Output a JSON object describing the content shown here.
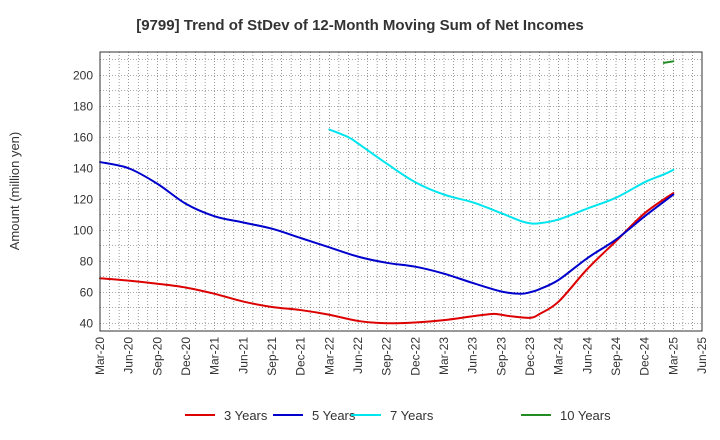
{
  "chart_data": {
    "type": "line",
    "title": "[9799]  Trend of StDev of 12-Month Moving Sum of Net Incomes",
    "ylabel": "Amount (million yen)",
    "xlabel": "",
    "ylim": [
      35,
      215
    ],
    "yticks": [
      40,
      60,
      80,
      100,
      120,
      140,
      160,
      180,
      200
    ],
    "x_ticks": [
      "Mar-20",
      "Jun-20",
      "Sep-20",
      "Dec-20",
      "Mar-21",
      "Jun-21",
      "Sep-21",
      "Dec-21",
      "Mar-22",
      "Jun-22",
      "Sep-22",
      "Dec-22",
      "Mar-23",
      "Jun-23",
      "Sep-23",
      "Dec-23",
      "Mar-24",
      "Jun-24",
      "Sep-24",
      "Dec-24",
      "Mar-25",
      "Jun-25"
    ],
    "grid": true,
    "legend_position": "bottom",
    "series": [
      {
        "name": "3 Years",
        "color": "#dd0000",
        "points": [
          [
            "Mar-20",
            69
          ],
          [
            "Jun-20",
            67.5
          ],
          [
            "Sep-20",
            65.5
          ],
          [
            "Dec-20",
            63
          ],
          [
            "Mar-21",
            59
          ],
          [
            "Jun-21",
            54
          ],
          [
            "Sep-21",
            50.5
          ],
          [
            "Dec-21",
            48.5
          ],
          [
            "Mar-22",
            45.5
          ],
          [
            "Jun-22",
            41.5
          ],
          [
            "Sep-22",
            40
          ],
          [
            "Dec-22",
            40.5
          ],
          [
            "Mar-23",
            42
          ],
          [
            "Jun-23",
            44.5
          ],
          [
            "Aug-23",
            46
          ],
          [
            "Sep-23",
            45.5
          ],
          [
            "Oct-23",
            44.5
          ],
          [
            "Dec-23",
            43.5
          ],
          [
            "Jan-24",
            46
          ],
          [
            "Mar-24",
            54
          ],
          [
            "Jun-24",
            75
          ],
          [
            "Sep-24",
            93
          ],
          [
            "Dec-24",
            111
          ],
          [
            "Mar-25",
            124
          ]
        ]
      },
      {
        "name": "5 Years",
        "color": "#0000cc",
        "points": [
          [
            "Mar-20",
            144
          ],
          [
            "Jun-20",
            140
          ],
          [
            "Sep-20",
            130
          ],
          [
            "Dec-20",
            117
          ],
          [
            "Mar-21",
            109
          ],
          [
            "Jun-21",
            105
          ],
          [
            "Sep-21",
            101
          ],
          [
            "Dec-21",
            95
          ],
          [
            "Mar-22",
            89
          ],
          [
            "Jun-22",
            83
          ],
          [
            "Sep-22",
            79
          ],
          [
            "Dec-22",
            76.5
          ],
          [
            "Mar-23",
            72
          ],
          [
            "Jun-23",
            66
          ],
          [
            "Sep-23",
            60.5
          ],
          [
            "Nov-23",
            59
          ],
          [
            "Dec-23",
            60
          ],
          [
            "Jan-24",
            62
          ],
          [
            "Mar-24",
            68
          ],
          [
            "Jun-24",
            82
          ],
          [
            "Sep-24",
            94
          ],
          [
            "Dec-24",
            109
          ],
          [
            "Mar-25",
            123
          ]
        ]
      },
      {
        "name": "7 Years",
        "color": "#00e5ee",
        "points": [
          [
            "Mar-22",
            165
          ],
          [
            "May-22",
            160
          ],
          [
            "Jun-22",
            156
          ],
          [
            "Sep-22",
            143
          ],
          [
            "Dec-22",
            131
          ],
          [
            "Mar-23",
            123
          ],
          [
            "Jun-23",
            118
          ],
          [
            "Sep-23",
            111
          ],
          [
            "Nov-23",
            106
          ],
          [
            "Dec-23",
            104.5
          ],
          [
            "Jan-24",
            104.5
          ],
          [
            "Mar-24",
            107
          ],
          [
            "Jun-24",
            114
          ],
          [
            "Sep-24",
            121
          ],
          [
            "Dec-24",
            131
          ],
          [
            "Feb-25",
            136
          ],
          [
            "Mar-25",
            139
          ]
        ]
      },
      {
        "name": "10 Years",
        "color": "#228b22",
        "points": [
          [
            "Feb-25",
            208
          ],
          [
            "Mar-25",
            209
          ]
        ]
      }
    ]
  }
}
